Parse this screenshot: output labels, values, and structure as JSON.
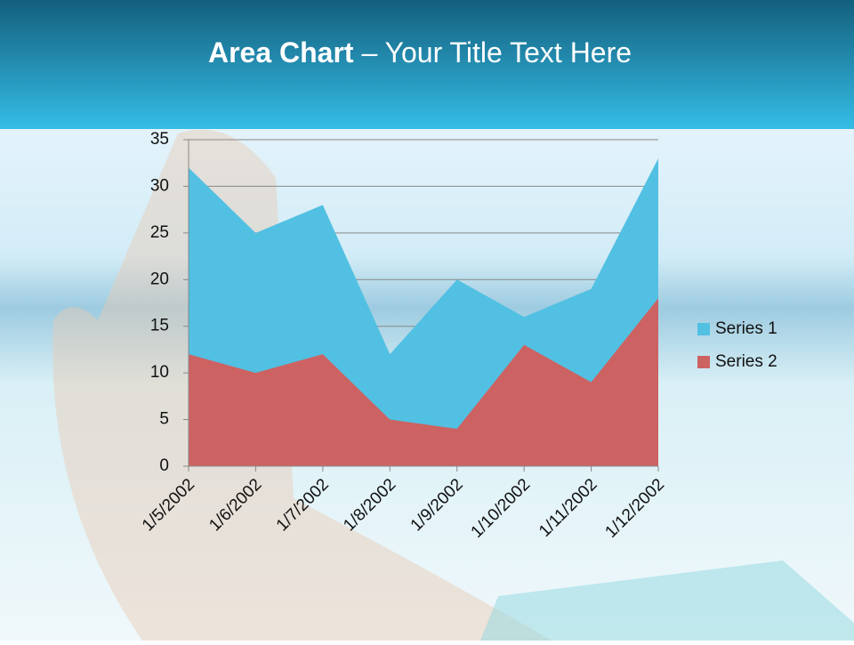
{
  "slide": {
    "title_bold": "Area Chart",
    "title_rest": "– Your Title Text Here"
  },
  "chart_data": {
    "type": "area",
    "categories": [
      "1/5/2002",
      "1/6/2002",
      "1/7/2002",
      "1/8/2002",
      "1/9/2002",
      "1/10/2002",
      "1/11/2002",
      "1/12/2002"
    ],
    "series": [
      {
        "name": "Series 1",
        "color": "#52c0e2",
        "values": [
          32,
          25,
          28,
          12,
          20,
          16,
          19,
          33
        ]
      },
      {
        "name": "Series 2",
        "color": "#cd6262",
        "values": [
          12,
          10,
          12,
          5,
          4,
          13,
          9,
          18
        ]
      }
    ],
    "ylim": [
      0,
      35
    ],
    "yticks": [
      0,
      5,
      10,
      15,
      20,
      25,
      30,
      35
    ],
    "grid": true,
    "legend": "right"
  }
}
